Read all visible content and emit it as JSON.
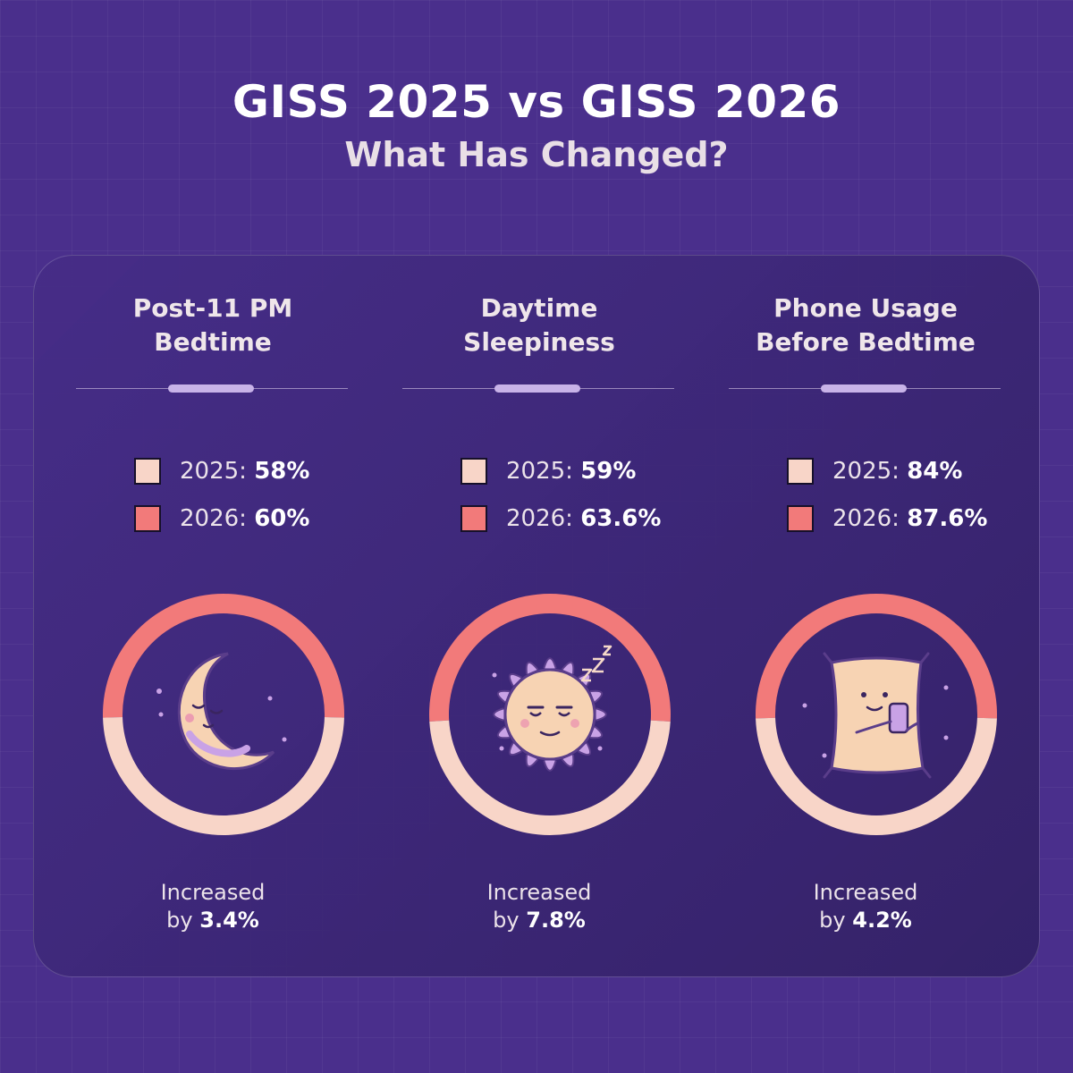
{
  "header": {
    "title": "GISS 2025 vs GISS 2026",
    "subtitle": "What Has Changed?"
  },
  "colors": {
    "background": "#4a2f8c",
    "color_2025": "#f8d5c8",
    "color_2026": "#f27a7a",
    "illustration": "#f7d3b3",
    "illustration_accent": "#c9a2e6"
  },
  "chart_data": [
    {
      "type": "pie",
      "title": "Post-11 PM Bedtime",
      "title_lines": [
        "Post-11 PM",
        "Bedtime"
      ],
      "series": [
        {
          "name": "2025",
          "value": 58,
          "label": "58%"
        },
        {
          "name": "2026",
          "value": 60,
          "label": "60%"
        }
      ],
      "change_text": "Increased",
      "change_prefix": "by",
      "change_value": "3.4%",
      "icon": "sleeping-moon-icon"
    },
    {
      "type": "pie",
      "title": "Daytime Sleepiness",
      "title_lines": [
        "Daytime",
        "Sleepiness"
      ],
      "series": [
        {
          "name": "2025",
          "value": 59,
          "label": "59%"
        },
        {
          "name": "2026",
          "value": 63.6,
          "label": "63.6%"
        }
      ],
      "change_text": "Increased",
      "change_prefix": "by",
      "change_value": "7.8%",
      "icon": "sleepy-sun-icon"
    },
    {
      "type": "pie",
      "title": "Phone Usage Before Bedtime",
      "title_lines": [
        "Phone Usage",
        "Before Bedtime"
      ],
      "series": [
        {
          "name": "2025",
          "value": 84,
          "label": "84%"
        },
        {
          "name": "2026",
          "value": 87.6,
          "label": "87.6%"
        }
      ],
      "change_text": "Increased",
      "change_prefix": "by",
      "change_value": "4.2%",
      "icon": "pillow-phone-icon"
    }
  ]
}
